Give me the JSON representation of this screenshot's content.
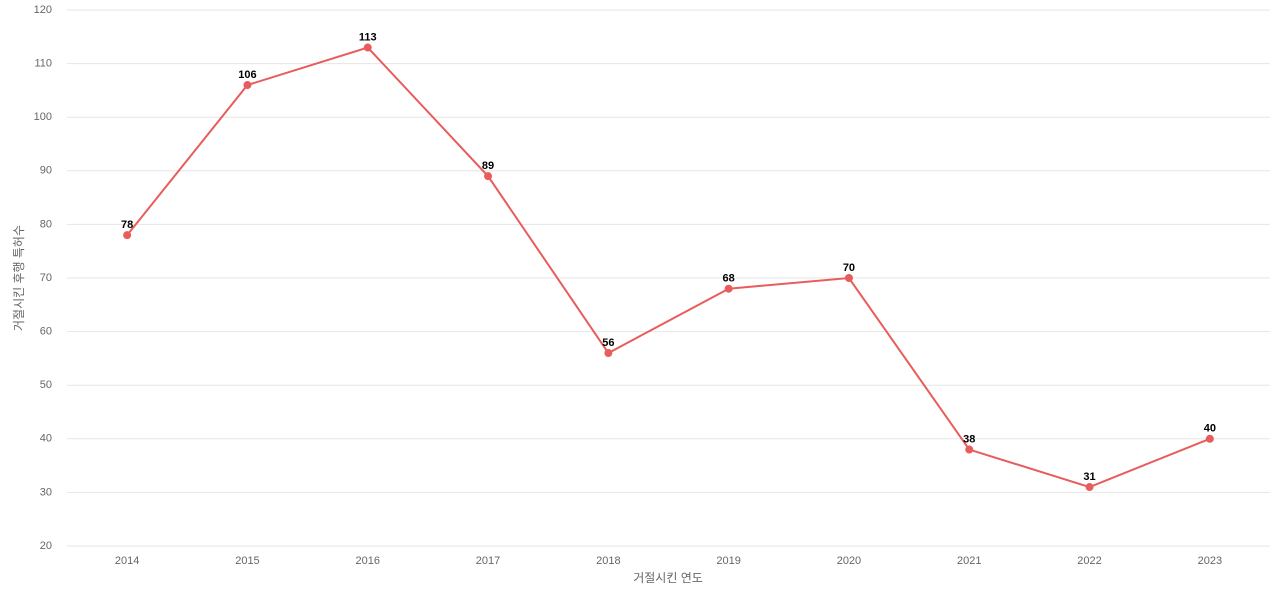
{
  "chart_data": {
    "type": "line",
    "x_label": "거절시킨 연도",
    "y_label": "거절시킨 후행 특허수",
    "categories": [
      "2014",
      "2015",
      "2016",
      "2017",
      "2018",
      "2019",
      "2020",
      "2021",
      "2022",
      "2023"
    ],
    "values": [
      78,
      106,
      113,
      89,
      56,
      68,
      70,
      38,
      31,
      40
    ],
    "color": "#e85c5c",
    "ylim": [
      20,
      120
    ],
    "yticks": [
      20,
      30,
      40,
      50,
      60,
      70,
      80,
      90,
      100,
      110,
      120
    ],
    "grid": true
  }
}
